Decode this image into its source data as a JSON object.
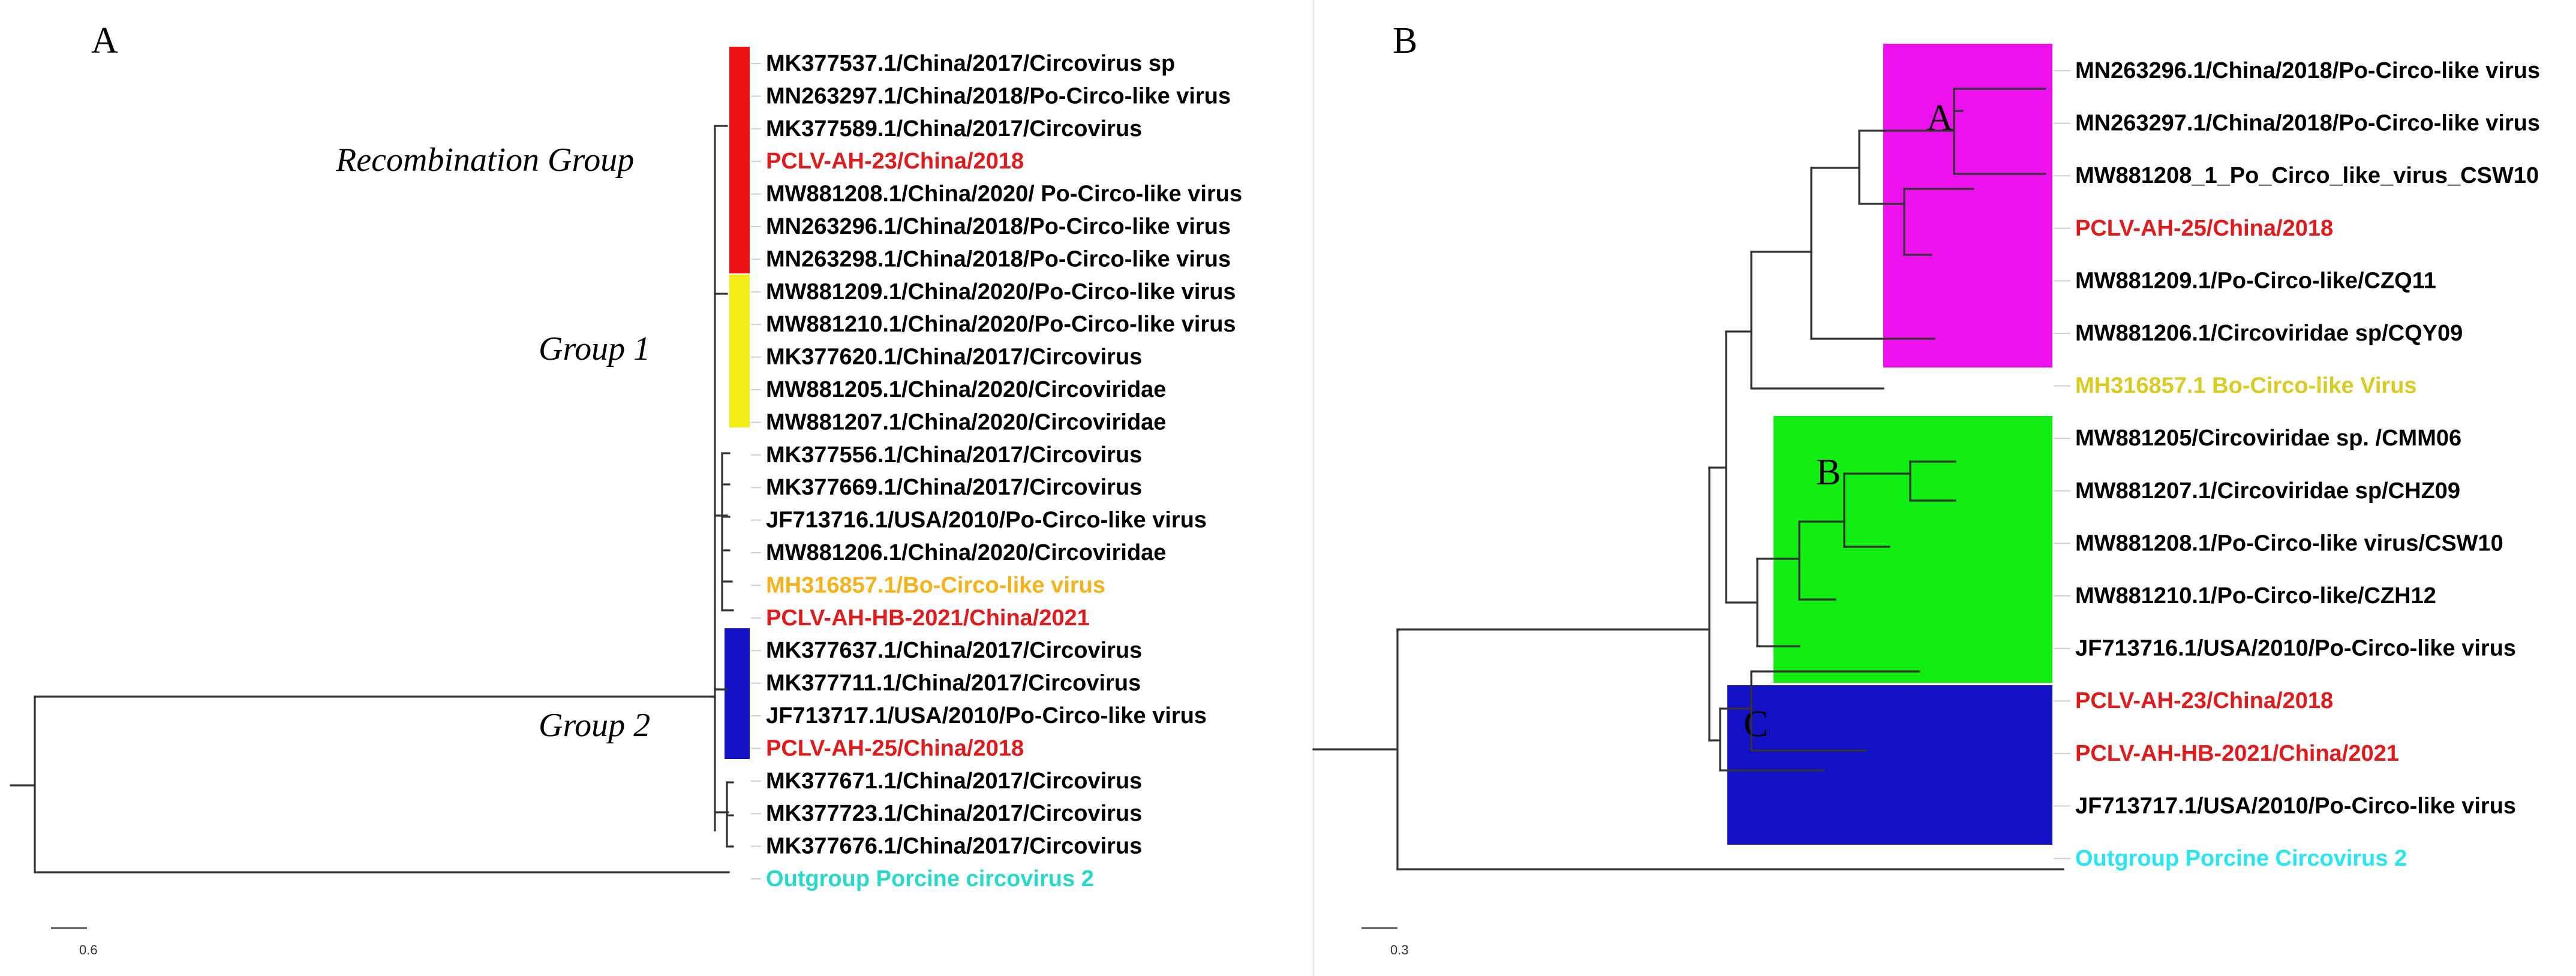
{
  "panelA": {
    "label": "A",
    "group_labels": {
      "recombination": "Recombination Group",
      "group1": "Group 1",
      "group2": "Group 2"
    },
    "scale": "0.6",
    "colors": {
      "recombination_bar": "#ee1111",
      "group1_bar": "#f4ef1a",
      "group2_bar": "#1212c4"
    },
    "leaves": [
      {
        "text": "MK377537.1/China/2017/Circovirus sp",
        "color": "#000000"
      },
      {
        "text": "MN263297.1/China/2018/Po-Circo-like virus",
        "color": "#000000"
      },
      {
        "text": "MK377589.1/China/2017/Circovirus",
        "color": "#000000"
      },
      {
        "text": "PCLV-AH-23/China/2018",
        "color": "#e31a1c"
      },
      {
        "text": "MW881208.1/China/2020/ Po-Circo-like virus",
        "color": "#000000"
      },
      {
        "text": "MN263296.1/China/2018/Po-Circo-like virus",
        "color": "#000000"
      },
      {
        "text": "MN263298.1/China/2018/Po-Circo-like virus",
        "color": "#000000"
      },
      {
        "text": "MW881209.1/China/2020/Po-Circo-like virus",
        "color": "#000000"
      },
      {
        "text": "MW881210.1/China/2020/Po-Circo-like virus",
        "color": "#000000"
      },
      {
        "text": "MK377620.1/China/2017/Circovirus",
        "color": "#000000"
      },
      {
        "text": "MW881205.1/China/2020/Circoviridae",
        "color": "#000000"
      },
      {
        "text": "MW881207.1/China/2020/Circoviridae",
        "color": "#000000"
      },
      {
        "text": "MK377556.1/China/2017/Circovirus",
        "color": "#000000"
      },
      {
        "text": "MK377669.1/China/2017/Circovirus",
        "color": "#000000"
      },
      {
        "text": "JF713716.1/USA/2010/Po-Circo-like  virus",
        "color": "#000000"
      },
      {
        "text": "MW881206.1/China/2020/Circoviridae",
        "color": "#000000"
      },
      {
        "text": "MH316857.1/Bo-Circo-like virus",
        "color": "#f5b21a"
      },
      {
        "text": "PCLV-AH-HB-2021/China/2021",
        "color": "#e31a1c"
      },
      {
        "text": "MK377637.1/China/2017/Circovirus",
        "color": "#000000"
      },
      {
        "text": "MK377711.1/China/2017/Circovirus",
        "color": "#000000"
      },
      {
        "text": "JF713717.1/USA/2010/Po-Circo-like  virus",
        "color": "#000000"
      },
      {
        "text": "PCLV-AH-25/China/2018",
        "color": "#e31a1c"
      },
      {
        "text": "MK377671.1/China/2017/Circovirus",
        "color": "#000000"
      },
      {
        "text": "MK377723.1/China/2017/Circovirus",
        "color": "#000000"
      },
      {
        "text": "MK377676.1/China/2017/Circovirus",
        "color": "#000000"
      },
      {
        "text": "Outgroup Porcine circovirus 2",
        "color": "#27d9c8"
      }
    ]
  },
  "panelB": {
    "label": "B",
    "clade_labels": {
      "a": "A",
      "b": "B",
      "c": "C"
    },
    "scale": "0.3",
    "colors": {
      "clade_a": "#ee11ee",
      "clade_b": "#11ee11",
      "clade_c": "#1212c4"
    },
    "leaves": [
      {
        "text": "MN263296.1/China/2018/Po-Circo-like virus",
        "color": "#000000"
      },
      {
        "text": "MN263297.1/China/2018/Po-Circo-like virus",
        "color": "#000000"
      },
      {
        "text": "MW881208_1_Po_Circo_like_virus_CSW10",
        "color": "#000000"
      },
      {
        "text": "PCLV-AH-25/China/2018",
        "color": "#e31a1c"
      },
      {
        "text": "MW881209.1/Po-Circo-like/CZQ11",
        "color": "#000000"
      },
      {
        "text": "MW881206.1/Circoviridae sp/CQY09",
        "color": "#000000"
      },
      {
        "text": "MH316857.1 Bo-Circo-like Virus",
        "color": "#d8cc22"
      },
      {
        "text": "MW881205/Circoviridae sp. /CMM06",
        "color": "#000000"
      },
      {
        "text": "MW881207.1/Circoviridae sp/CHZ09",
        "color": "#000000"
      },
      {
        "text": "MW881208.1/Po-Circo-like virus/CSW10",
        "color": "#000000"
      },
      {
        "text": "MW881210.1/Po-Circo-like/CZH12",
        "color": "#000000"
      },
      {
        "text": "JF713716.1/USA/2010/Po-Circo-like  virus",
        "color": "#000000"
      },
      {
        "text": "PCLV-AH-23/China/2018",
        "color": "#e31a1c"
      },
      {
        "text": "PCLV-AH-HB-2021/China/2021",
        "color": "#e31a1c"
      },
      {
        "text": "JF713717.1/USA/2010/Po-Circo-like  virus",
        "color": "#000000"
      },
      {
        "text": "Outgroup Porcine Circovirus 2",
        "color": "#27e6f0"
      }
    ]
  }
}
